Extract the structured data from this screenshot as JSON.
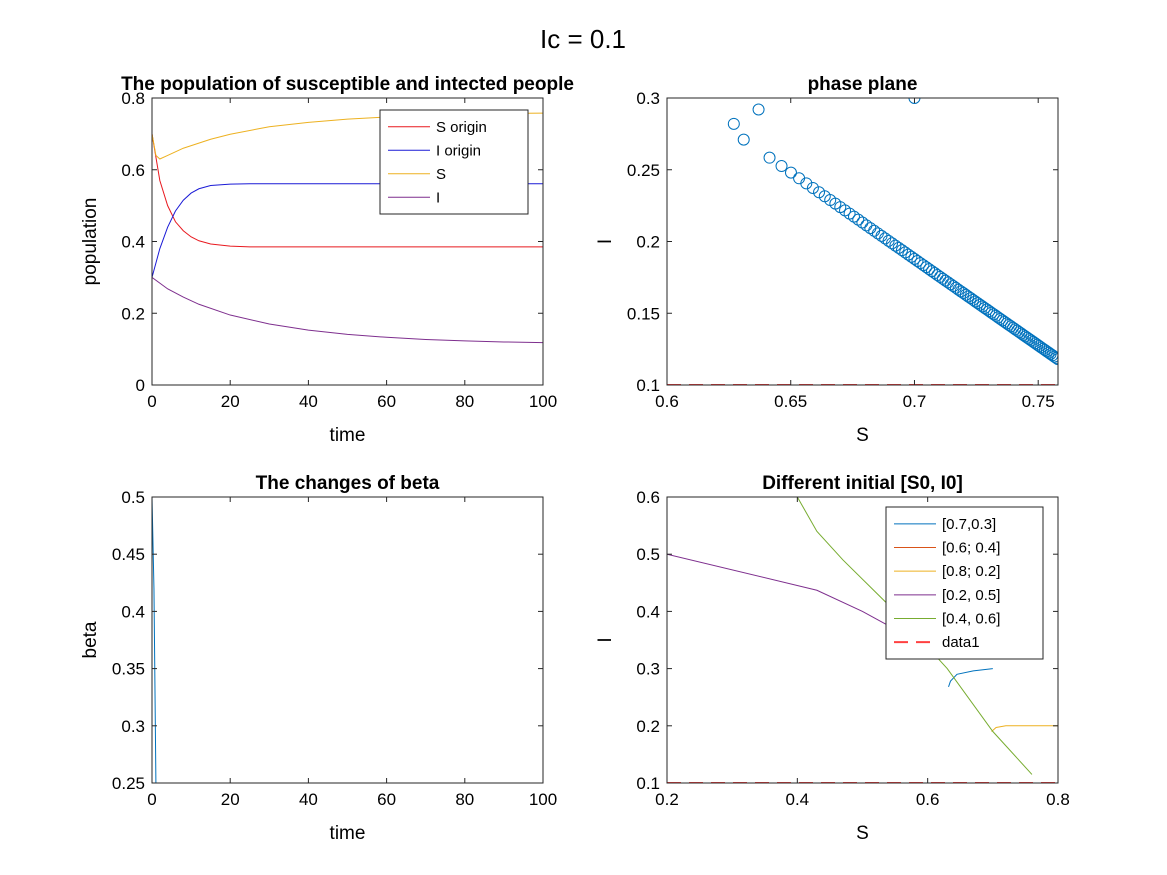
{
  "figure": {
    "suptitle": "Ic = 0.1"
  },
  "chart_data": [
    {
      "id": "pop",
      "type": "line",
      "title": "The population of susceptible and intected people",
      "xlabel": "time",
      "ylabel": "population",
      "xlim": [
        0,
        100
      ],
      "ylim": [
        0,
        0.8
      ],
      "xticks": [
        0,
        20,
        40,
        60,
        80,
        100
      ],
      "yticks": [
        0,
        0.2,
        0.4,
        0.6,
        0.8
      ],
      "grid": false,
      "legend_position": "top-right",
      "series": [
        {
          "name": "S origin",
          "color": "#e8191f",
          "points": [
            [
              0,
              0.7
            ],
            [
              2,
              0.57
            ],
            [
              4,
              0.5
            ],
            [
              6,
              0.455
            ],
            [
              8,
              0.43
            ],
            [
              10,
              0.413
            ],
            [
              12,
              0.402
            ],
            [
              15,
              0.393
            ],
            [
              20,
              0.387
            ],
            [
              25,
              0.385
            ],
            [
              30,
              0.385
            ],
            [
              100,
              0.385
            ]
          ]
        },
        {
          "name": "I origin",
          "color": "#1a1ad6",
          "points": [
            [
              0,
              0.3
            ],
            [
              2,
              0.38
            ],
            [
              4,
              0.44
            ],
            [
              6,
              0.485
            ],
            [
              8,
              0.515
            ],
            [
              10,
              0.535
            ],
            [
              12,
              0.547
            ],
            [
              15,
              0.556
            ],
            [
              20,
              0.56
            ],
            [
              25,
              0.561
            ],
            [
              100,
              0.561
            ]
          ]
        },
        {
          "name": "S",
          "color": "#edb120",
          "points": [
            [
              0,
              0.7
            ],
            [
              1,
              0.64
            ],
            [
              2,
              0.63
            ],
            [
              4,
              0.64
            ],
            [
              8,
              0.66
            ],
            [
              15,
              0.685
            ],
            [
              20,
              0.699
            ],
            [
              30,
              0.72
            ],
            [
              40,
              0.732
            ],
            [
              50,
              0.741
            ],
            [
              60,
              0.747
            ],
            [
              70,
              0.751
            ],
            [
              80,
              0.754
            ],
            [
              90,
              0.757
            ],
            [
              100,
              0.758
            ]
          ]
        },
        {
          "name": "I",
          "color": "#7e2f8e",
          "points": [
            [
              0,
              0.3
            ],
            [
              4,
              0.268
            ],
            [
              8,
              0.245
            ],
            [
              12,
              0.225
            ],
            [
              20,
              0.195
            ],
            [
              30,
              0.17
            ],
            [
              40,
              0.153
            ],
            [
              50,
              0.141
            ],
            [
              60,
              0.133
            ],
            [
              70,
              0.127
            ],
            [
              80,
              0.123
            ],
            [
              90,
              0.12
            ],
            [
              100,
              0.118
            ]
          ]
        }
      ]
    },
    {
      "id": "phase",
      "type": "scatter",
      "title": "phase plane",
      "xlabel": "S",
      "ylabel": "I",
      "xlim": [
        0.6,
        0.758
      ],
      "ylim": [
        0.1,
        0.3
      ],
      "xticks": [
        0.6,
        0.65,
        0.7,
        0.75
      ],
      "yticks": [
        0.1,
        0.15,
        0.2,
        0.25,
        0.3
      ],
      "grid": false,
      "marker_color": "#0072bd",
      "start_points": [
        [
          0.7,
          0.3
        ],
        [
          0.637,
          0.292
        ],
        [
          0.627,
          0.282
        ]
      ],
      "diagonal_start": [
        0.631,
        0.271
      ],
      "diagonal_end": [
        0.758,
        0.118
      ],
      "reference_line": {
        "y": 0.1,
        "color": "#ff4040",
        "dash": true
      }
    },
    {
      "id": "beta",
      "type": "line",
      "title": "The changes of beta",
      "xlabel": "time",
      "ylabel": "beta",
      "xlim": [
        0,
        100
      ],
      "ylim": [
        0.25,
        0.5
      ],
      "xticks": [
        0,
        20,
        40,
        60,
        80,
        100
      ],
      "yticks": [
        0.25,
        0.3,
        0.35,
        0.4,
        0.45,
        0.5
      ],
      "grid": false,
      "series": [
        {
          "color": "#0072bd",
          "points": [
            [
              0,
              0.5
            ],
            [
              0.5,
              0.42
            ],
            [
              1,
              0.25
            ],
            [
              100,
              0.25
            ]
          ]
        }
      ]
    },
    {
      "id": "initial",
      "type": "line",
      "title": "Different initial [S0, I0]",
      "xlabel": "S",
      "ylabel": "I",
      "xlim": [
        0.2,
        0.8
      ],
      "ylim": [
        0.1,
        0.6
      ],
      "xticks": [
        0.2,
        0.4,
        0.6,
        0.8
      ],
      "yticks": [
        0.1,
        0.2,
        0.3,
        0.4,
        0.5,
        0.6
      ],
      "grid": false,
      "legend_position": "top-right",
      "series": [
        {
          "name": "[0.7,0.3]",
          "color": "#0072bd",
          "points": [
            [
              0.7,
              0.3
            ],
            [
              0.67,
              0.296
            ],
            [
              0.645,
              0.29
            ],
            [
              0.635,
              0.278
            ],
            [
              0.632,
              0.268
            ]
          ]
        },
        {
          "name": "[0.6; 0.4]",
          "color": "#d95319",
          "points": [
            [
              0.6,
              0.4
            ],
            [
              0.58,
              0.375
            ],
            [
              0.57,
              0.36
            ]
          ]
        },
        {
          "name": "[0.8; 0.2]",
          "color": "#edb120",
          "points": [
            [
              0.8,
              0.2
            ],
            [
              0.72,
              0.2
            ],
            [
              0.705,
              0.197
            ],
            [
              0.698,
              0.19
            ]
          ]
        },
        {
          "name": "[0.2, 0.5]",
          "color": "#7e2f8e",
          "points": [
            [
              0.2,
              0.5
            ],
            [
              0.43,
              0.437
            ],
            [
              0.5,
              0.4
            ],
            [
              0.54,
              0.375
            ]
          ]
        },
        {
          "name": "[0.4, 0.6]",
          "color": "#77ac30",
          "points": [
            [
              0.4,
              0.6
            ],
            [
              0.43,
              0.54
            ],
            [
              0.47,
              0.49
            ],
            [
              0.55,
              0.4
            ],
            [
              0.63,
              0.3
            ],
            [
              0.7,
              0.19
            ],
            [
              0.76,
              0.115
            ]
          ]
        },
        {
          "name": "data1",
          "color": "#ff4040",
          "dash": true,
          "points": [
            [
              0.2,
              0.1
            ],
            [
              0.8,
              0.1
            ]
          ]
        }
      ]
    }
  ]
}
